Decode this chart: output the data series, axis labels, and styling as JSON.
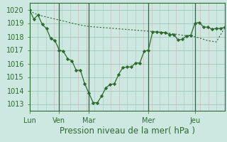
{
  "line1_x": [
    0,
    0.5,
    1,
    1.5,
    2,
    2.5,
    3,
    3.5,
    4,
    4.5,
    5,
    5.5,
    6,
    6.5,
    7,
    7.5,
    8,
    8.5,
    9,
    9.5,
    10,
    10.5,
    11,
    11.5,
    12,
    12.5,
    13,
    13.5,
    14,
    14.5,
    15,
    15.5,
    16,
    16.5,
    17,
    17.5,
    18,
    18.5,
    19,
    19.5,
    20,
    20.5,
    21,
    21.5,
    22,
    22.5,
    23
  ],
  "line1_y": [
    1020.0,
    1019.3,
    1019.6,
    1018.9,
    1018.6,
    1017.85,
    1017.7,
    1017.0,
    1016.9,
    1016.35,
    1016.2,
    1015.5,
    1015.5,
    1014.5,
    1013.8,
    1013.1,
    1013.1,
    1013.6,
    1014.2,
    1014.45,
    1014.5,
    1015.2,
    1015.7,
    1015.75,
    1015.75,
    1016.05,
    1016.05,
    1016.9,
    1017.0,
    1018.35,
    1018.35,
    1018.3,
    1018.3,
    1018.15,
    1018.15,
    1017.75,
    1017.8,
    1018.05,
    1018.1,
    1019.0,
    1019.05,
    1018.7,
    1018.7,
    1018.55,
    1018.6,
    1018.6,
    1018.7
  ],
  "line2_x": [
    0,
    1,
    2,
    3,
    4,
    5,
    6,
    7,
    8,
    9,
    10,
    11,
    12,
    13,
    14,
    15,
    16,
    17,
    18,
    19,
    20,
    21,
    22,
    23
  ],
  "line2_y": [
    1019.9,
    1019.6,
    1019.45,
    1019.3,
    1019.15,
    1019.0,
    1018.85,
    1018.75,
    1018.7,
    1018.65,
    1018.6,
    1018.55,
    1018.5,
    1018.45,
    1018.4,
    1018.35,
    1018.3,
    1018.2,
    1018.1,
    1018.05,
    1017.9,
    1017.7,
    1017.6,
    1018.65
  ],
  "line_color": "#2d6a2d",
  "bg_color": "#cce8e0",
  "grid_major_color": "#a0c8b8",
  "grid_minor_color": "#c8a8a8",
  "ylim": [
    1012.5,
    1020.5
  ],
  "yticks": [
    1013,
    1014,
    1015,
    1016,
    1017,
    1018,
    1019,
    1020
  ],
  "xlim": [
    0,
    23
  ],
  "day_vlines": [
    3.5,
    7,
    14,
    19.5
  ],
  "xtick_positions": [
    0,
    3.5,
    7,
    14,
    19.5
  ],
  "xtick_labels": [
    "Lun",
    "Ven",
    "Mar",
    "Mer",
    "Jeu"
  ],
  "xlabel": "Pression niveau de la mer( hPa )",
  "xlabel_fontsize": 8.5,
  "tick_fontsize": 7,
  "num_minor_vlines": 23
}
